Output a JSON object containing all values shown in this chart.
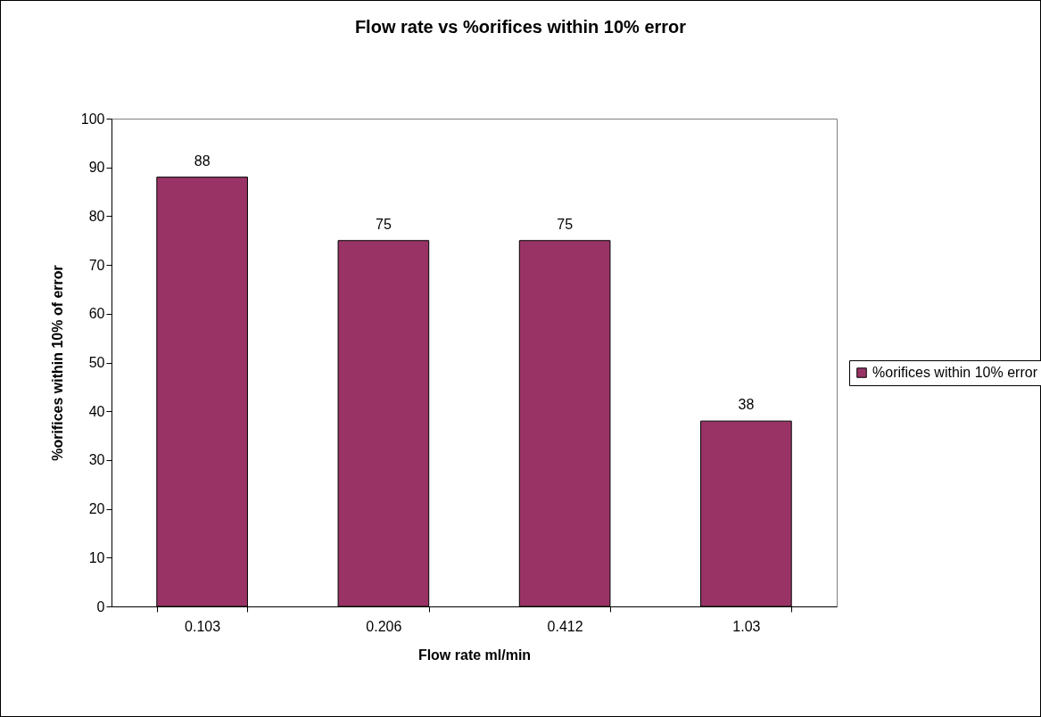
{
  "chart_data": {
    "type": "bar",
    "title": "Flow rate vs %orifices within 10% error",
    "xlabel": "Flow rate ml/min",
    "ylabel": "%orifices within 10% of error",
    "categories": [
      "0.103",
      "0.206",
      "0.412",
      "1.03"
    ],
    "series": [
      {
        "name": "%orifices within 10% error",
        "color": "#993366",
        "values": [
          88,
          75,
          75,
          38
        ]
      }
    ],
    "ylim": [
      0,
      100
    ],
    "yticks": [
      0,
      10,
      20,
      30,
      40,
      50,
      60,
      70,
      80,
      90,
      100
    ],
    "grid": false,
    "legend": "right",
    "data_labels": true
  }
}
